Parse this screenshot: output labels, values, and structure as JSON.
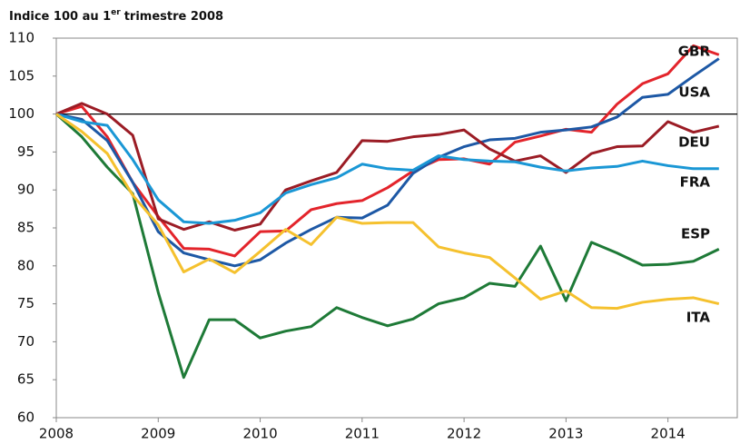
{
  "chart_data": {
    "type": "line",
    "title": [
      "Indice 100 au 1",
      "er",
      "trimestre 2008"
    ],
    "x": [
      2008,
      2008.25,
      2008.5,
      2008.75,
      2009,
      2009.25,
      2009.5,
      2009.75,
      2010,
      2010.25,
      2010.5,
      2010.75,
      2011,
      2011.25,
      2011.5,
      2011.75,
      2012,
      2012.25,
      2012.5,
      2012.75,
      2013,
      2013.25,
      2013.5,
      2013.75,
      2014,
      2014.25,
      2014.5
    ],
    "xlim": [
      2008,
      2014.68
    ],
    "xticks": [
      2008,
      2009,
      2010,
      2011,
      2012,
      2013,
      2014
    ],
    "ylim": [
      60,
      110
    ],
    "yticks": [
      60,
      65,
      70,
      75,
      80,
      85,
      90,
      95,
      100,
      105,
      110
    ],
    "reference_line": 100,
    "series": [
      {
        "name": "GBR",
        "color": "#e3242b",
        "values": [
          100,
          101,
          97,
          91,
          86.5,
          82.3,
          82.2,
          81.3,
          84.5,
          84.6,
          87.4,
          88.2,
          88.6,
          90.3,
          92.5,
          94,
          94.1,
          93.4,
          96.3,
          97.1,
          98,
          97.6,
          101.3,
          104,
          105.3,
          109,
          107.8
        ]
      },
      {
        "name": "USA",
        "color": "#1d58a5",
        "values": [
          100,
          99.3,
          96.5,
          91,
          84.5,
          81.7,
          80.8,
          80,
          80.8,
          83,
          84.8,
          86.4,
          86.3,
          88,
          92.2,
          94.3,
          95.7,
          96.6,
          96.8,
          97.6,
          97.9,
          98.3,
          99.6,
          102.2,
          102.6,
          105,
          107.3
        ]
      },
      {
        "name": "DEU",
        "color": "#9b1c25",
        "values": [
          100,
          101.4,
          100,
          97.2,
          86.2,
          84.8,
          85.8,
          84.7,
          85.5,
          90,
          91.2,
          92.3,
          96.5,
          96.4,
          97,
          97.3,
          97.9,
          95.4,
          93.8,
          94.5,
          92.3,
          94.8,
          95.7,
          95.8,
          99,
          97.6,
          98.4
        ]
      },
      {
        "name": "FRA",
        "color": "#1a97d5",
        "values": [
          100,
          99,
          98.5,
          94,
          88.7,
          85.8,
          85.6,
          86,
          87,
          89.6,
          90.7,
          91.6,
          93.4,
          92.8,
          92.6,
          94.5,
          94,
          93.8,
          93.7,
          93,
          92.5,
          92.9,
          93.1,
          93.8,
          93.2,
          92.8,
          92.8
        ]
      },
      {
        "name": "ESP",
        "color": "#1e7a37",
        "values": [
          100,
          97,
          93,
          89.5,
          76.5,
          65.3,
          72.9,
          72.9,
          70.5,
          71.4,
          72,
          74.5,
          73.2,
          72.1,
          73,
          75,
          75.8,
          77.7,
          77.3,
          82.6,
          75.4,
          83.1,
          81.7,
          80.1,
          80.2,
          80.6,
          82.2
        ]
      },
      {
        "name": "ITA",
        "color": "#f5c12e",
        "values": [
          100,
          97.7,
          94.8,
          89.3,
          85.4,
          79.2,
          80.9,
          79.1,
          81.9,
          84.8,
          82.8,
          86.4,
          85.6,
          85.7,
          85.7,
          82.5,
          81.7,
          81.1,
          78.4,
          75.6,
          76.7,
          74.5,
          74.4,
          75.2,
          75.6,
          75.8,
          75
        ]
      }
    ]
  }
}
